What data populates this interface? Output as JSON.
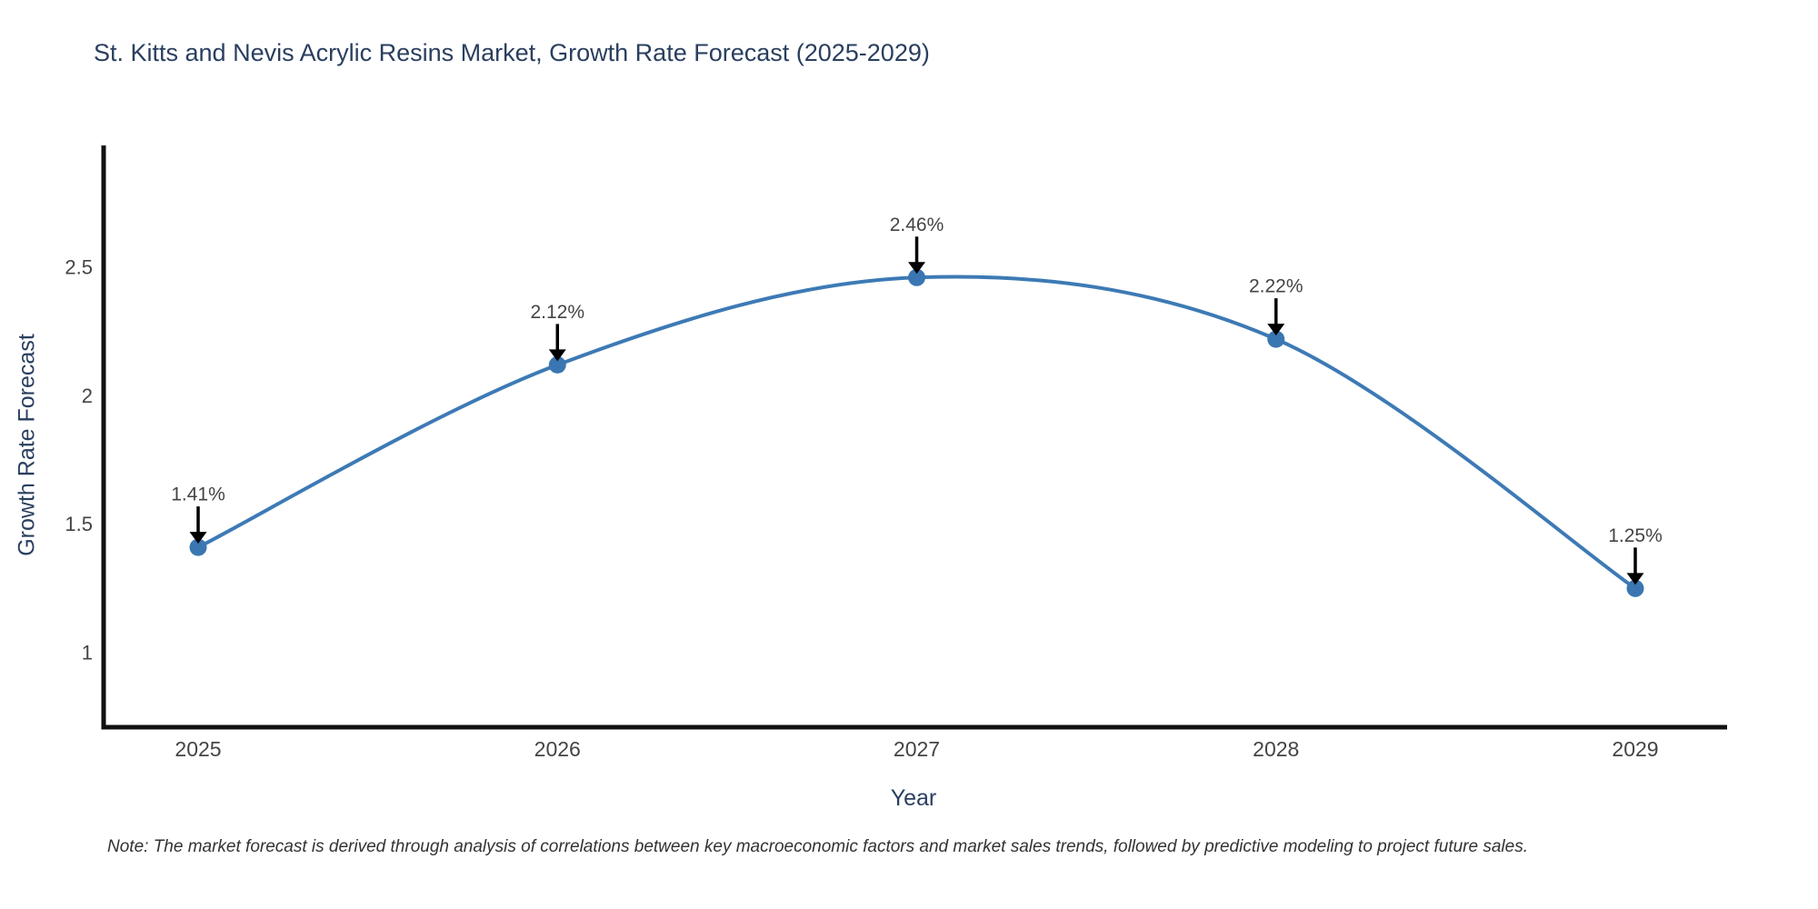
{
  "title": "St. Kitts and Nevis Acrylic Resins Market, Growth Rate Forecast (2025-2029)",
  "note": "Note: The market forecast is derived through analysis of correlations between key macroeconomic factors and market sales trends, followed by predictive modeling to project future sales.",
  "chart_data": {
    "type": "line",
    "title": "St. Kitts and Nevis Acrylic Resins Market, Growth Rate Forecast (2025-2029)",
    "xlabel": "Year",
    "ylabel": "Growth Rate Forecast",
    "categories": [
      "2025",
      "2026",
      "2027",
      "2028",
      "2029"
    ],
    "x": [
      2025,
      2026,
      2027,
      2028,
      2029
    ],
    "values": [
      1.41,
      2.12,
      2.46,
      2.22,
      1.25
    ],
    "point_labels": [
      "1.41%",
      "2.12%",
      "2.46%",
      "2.22%",
      "1.25%"
    ],
    "y_ticks": [
      1,
      1.5,
      2,
      2.5
    ],
    "y_tick_labels": [
      "1",
      "1.5",
      "2",
      "2.5"
    ],
    "ylim": [
      0.72,
      2.93
    ],
    "grid": false,
    "legend": "none",
    "line_shape": "spline",
    "annotation_style": "black downward arrows from value labels to points",
    "colors": {
      "line": "#3d7ab5",
      "marker": "#3a76b1",
      "axis": "#111111",
      "tick_label": "#444444",
      "point_label": "#444444",
      "title_text": "#2a3f5f",
      "arrow": "#000000",
      "background": "#ffffff"
    }
  }
}
